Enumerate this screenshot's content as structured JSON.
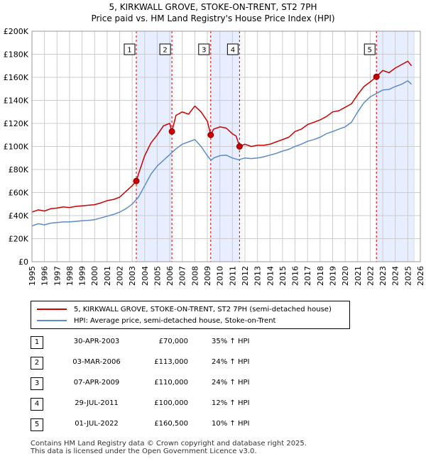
{
  "title_line1": "5, KIRKWALL GROVE, STOKE-ON-TRENT, ST2 7PH",
  "title_line2": "Price paid vs. HM Land Registry's House Price Index (HPI)",
  "colors": {
    "property": "#cc0000",
    "hpi": "#5b8bc9",
    "band": "#e6eeff",
    "grid": "#cccccc",
    "marker_line": "#cc0000"
  },
  "chart_data": {
    "type": "line",
    "title": "5, KIRKWALL GROVE, STOKE-ON-TRENT, ST2 7PH",
    "subtitle": "Price paid vs. HM Land Registry's House Price Index (HPI)",
    "xlim": [
      1995,
      2026
    ],
    "ylim": [
      0,
      200000
    ],
    "y_ticks": [
      {
        "value": 0,
        "label": "£0"
      },
      {
        "value": 20000,
        "label": "£20K"
      },
      {
        "value": 40000,
        "label": "£40K"
      },
      {
        "value": 60000,
        "label": "£60K"
      },
      {
        "value": 80000,
        "label": "£80K"
      },
      {
        "value": 100000,
        "label": "£100K"
      },
      {
        "value": 120000,
        "label": "£120K"
      },
      {
        "value": 140000,
        "label": "£140K"
      },
      {
        "value": 160000,
        "label": "£160K"
      },
      {
        "value": 180000,
        "label": "£180K"
      },
      {
        "value": 200000,
        "label": "£200K"
      }
    ],
    "x_ticks": [
      "1995",
      "1996",
      "1997",
      "1998",
      "1999",
      "2000",
      "2001",
      "2002",
      "2003",
      "2004",
      "2005",
      "2006",
      "2007",
      "2008",
      "2009",
      "2010",
      "2011",
      "2012",
      "2013",
      "2014",
      "2015",
      "2016",
      "2017",
      "2018",
      "2019",
      "2020",
      "2021",
      "2022",
      "2023",
      "2024",
      "2025",
      "2026"
    ],
    "grid": true,
    "series": [
      {
        "name": "5, KIRKWALL GROVE, STOKE-ON-TRENT, ST2 7PH (semi-detached house)",
        "color": "#cc0000",
        "x": [
          1995.0,
          1995.5,
          1996.0,
          1996.5,
          1997.0,
          1997.5,
          1998.0,
          1998.5,
          1999.0,
          1999.5,
          2000.0,
          2000.5,
          2001.0,
          2001.5,
          2002.0,
          2002.5,
          2003.0,
          2003.33,
          2003.5,
          2004.0,
          2004.5,
          2005.0,
          2005.5,
          2006.0,
          2006.17,
          2006.5,
          2007.0,
          2007.5,
          2008.0,
          2008.5,
          2009.0,
          2009.27,
          2009.5,
          2010.0,
          2010.5,
          2011.0,
          2011.3,
          2011.57,
          2012.0,
          2012.5,
          2013.0,
          2013.5,
          2014.0,
          2014.5,
          2015.0,
          2015.5,
          2016.0,
          2016.5,
          2017.0,
          2017.5,
          2018.0,
          2018.5,
          2019.0,
          2019.5,
          2020.0,
          2020.5,
          2021.0,
          2021.5,
          2022.0,
          2022.5,
          2023.0,
          2023.5,
          2024.0,
          2024.5,
          2025.0,
          2025.3
        ],
        "values": [
          43000,
          45000,
          44000,
          46000,
          46500,
          47500,
          47000,
          48000,
          48500,
          49000,
          49500,
          51000,
          53000,
          54000,
          56000,
          61000,
          66000,
          70000,
          76000,
          92000,
          103000,
          110000,
          118000,
          120000,
          113000,
          127000,
          130000,
          128000,
          135000,
          130000,
          122000,
          110000,
          115000,
          117000,
          116000,
          111000,
          109000,
          100000,
          102000,
          100000,
          101000,
          101000,
          102000,
          104000,
          106000,
          108000,
          113000,
          115000,
          119000,
          121000,
          123000,
          126000,
          130000,
          131000,
          134000,
          137000,
          145000,
          152000,
          156000,
          160500,
          166000,
          164000,
          168000,
          171000,
          174000,
          170000
        ]
      },
      {
        "name": "HPI: Average price, semi-detached house, Stoke-on-Trent",
        "color": "#5b8bc9",
        "x": [
          1995.0,
          1995.5,
          1996.0,
          1996.5,
          1997.0,
          1997.5,
          1998.0,
          1998.5,
          1999.0,
          1999.5,
          2000.0,
          2000.5,
          2001.0,
          2001.5,
          2002.0,
          2002.5,
          2003.0,
          2003.5,
          2004.0,
          2004.5,
          2005.0,
          2005.5,
          2006.0,
          2006.5,
          2007.0,
          2007.5,
          2008.0,
          2008.5,
          2009.0,
          2009.3,
          2009.5,
          2010.0,
          2010.5,
          2011.0,
          2011.5,
          2012.0,
          2012.5,
          2013.0,
          2013.5,
          2014.0,
          2014.5,
          2015.0,
          2015.5,
          2016.0,
          2016.5,
          2017.0,
          2017.5,
          2018.0,
          2018.5,
          2019.0,
          2019.5,
          2020.0,
          2020.5,
          2021.0,
          2021.5,
          2022.0,
          2022.5,
          2023.0,
          2023.5,
          2024.0,
          2024.5,
          2025.0,
          2025.3
        ],
        "values": [
          31000,
          33000,
          32000,
          33500,
          34000,
          34500,
          34500,
          35000,
          35500,
          35800,
          36500,
          38000,
          39500,
          41000,
          43000,
          46000,
          50000,
          56000,
          66000,
          76000,
          83000,
          88000,
          93000,
          98000,
          102000,
          104000,
          106000,
          100000,
          92000,
          88000,
          90000,
          92000,
          92500,
          90000,
          88500,
          90000,
          89500,
          90000,
          91000,
          92500,
          94000,
          96000,
          97500,
          100000,
          102000,
          104500,
          106000,
          108000,
          111000,
          113000,
          115000,
          117000,
          121000,
          130000,
          138000,
          143000,
          146000,
          149000,
          149500,
          152000,
          154000,
          157000,
          154000
        ]
      }
    ],
    "annotations": [
      {
        "label": "1",
        "x": 2003.33,
        "value": 70000
      },
      {
        "label": "2",
        "x": 2006.17,
        "value": 113000
      },
      {
        "label": "3",
        "x": 2009.27,
        "value": 110000
      },
      {
        "label": "4",
        "x": 2011.57,
        "value": 100000
      },
      {
        "label": "5",
        "x": 2022.5,
        "value": 160500
      }
    ]
  },
  "legend": {
    "property_label": "5, KIRKWALL GROVE, STOKE-ON-TRENT, ST2 7PH (semi-detached house)",
    "hpi_label": "HPI: Average price, semi-detached house, Stoke-on-Trent"
  },
  "sales": [
    {
      "num": "1",
      "date": "30-APR-2003",
      "price": "£70,000",
      "hpi": "35% ↑ HPI"
    },
    {
      "num": "2",
      "date": "03-MAR-2006",
      "price": "£113,000",
      "hpi": "24% ↑ HPI"
    },
    {
      "num": "3",
      "date": "07-APR-2009",
      "price": "£110,000",
      "hpi": "24% ↑ HPI"
    },
    {
      "num": "4",
      "date": "29-JUL-2011",
      "price": "£100,000",
      "hpi": "12% ↑ HPI"
    },
    {
      "num": "5",
      "date": "01-JUL-2022",
      "price": "£160,500",
      "hpi": "10% ↑ HPI"
    }
  ],
  "footer_line1": "Contains HM Land Registry data © Crown copyright and database right 2025.",
  "footer_line2": "This data is licensed under the Open Government Licence v3.0."
}
